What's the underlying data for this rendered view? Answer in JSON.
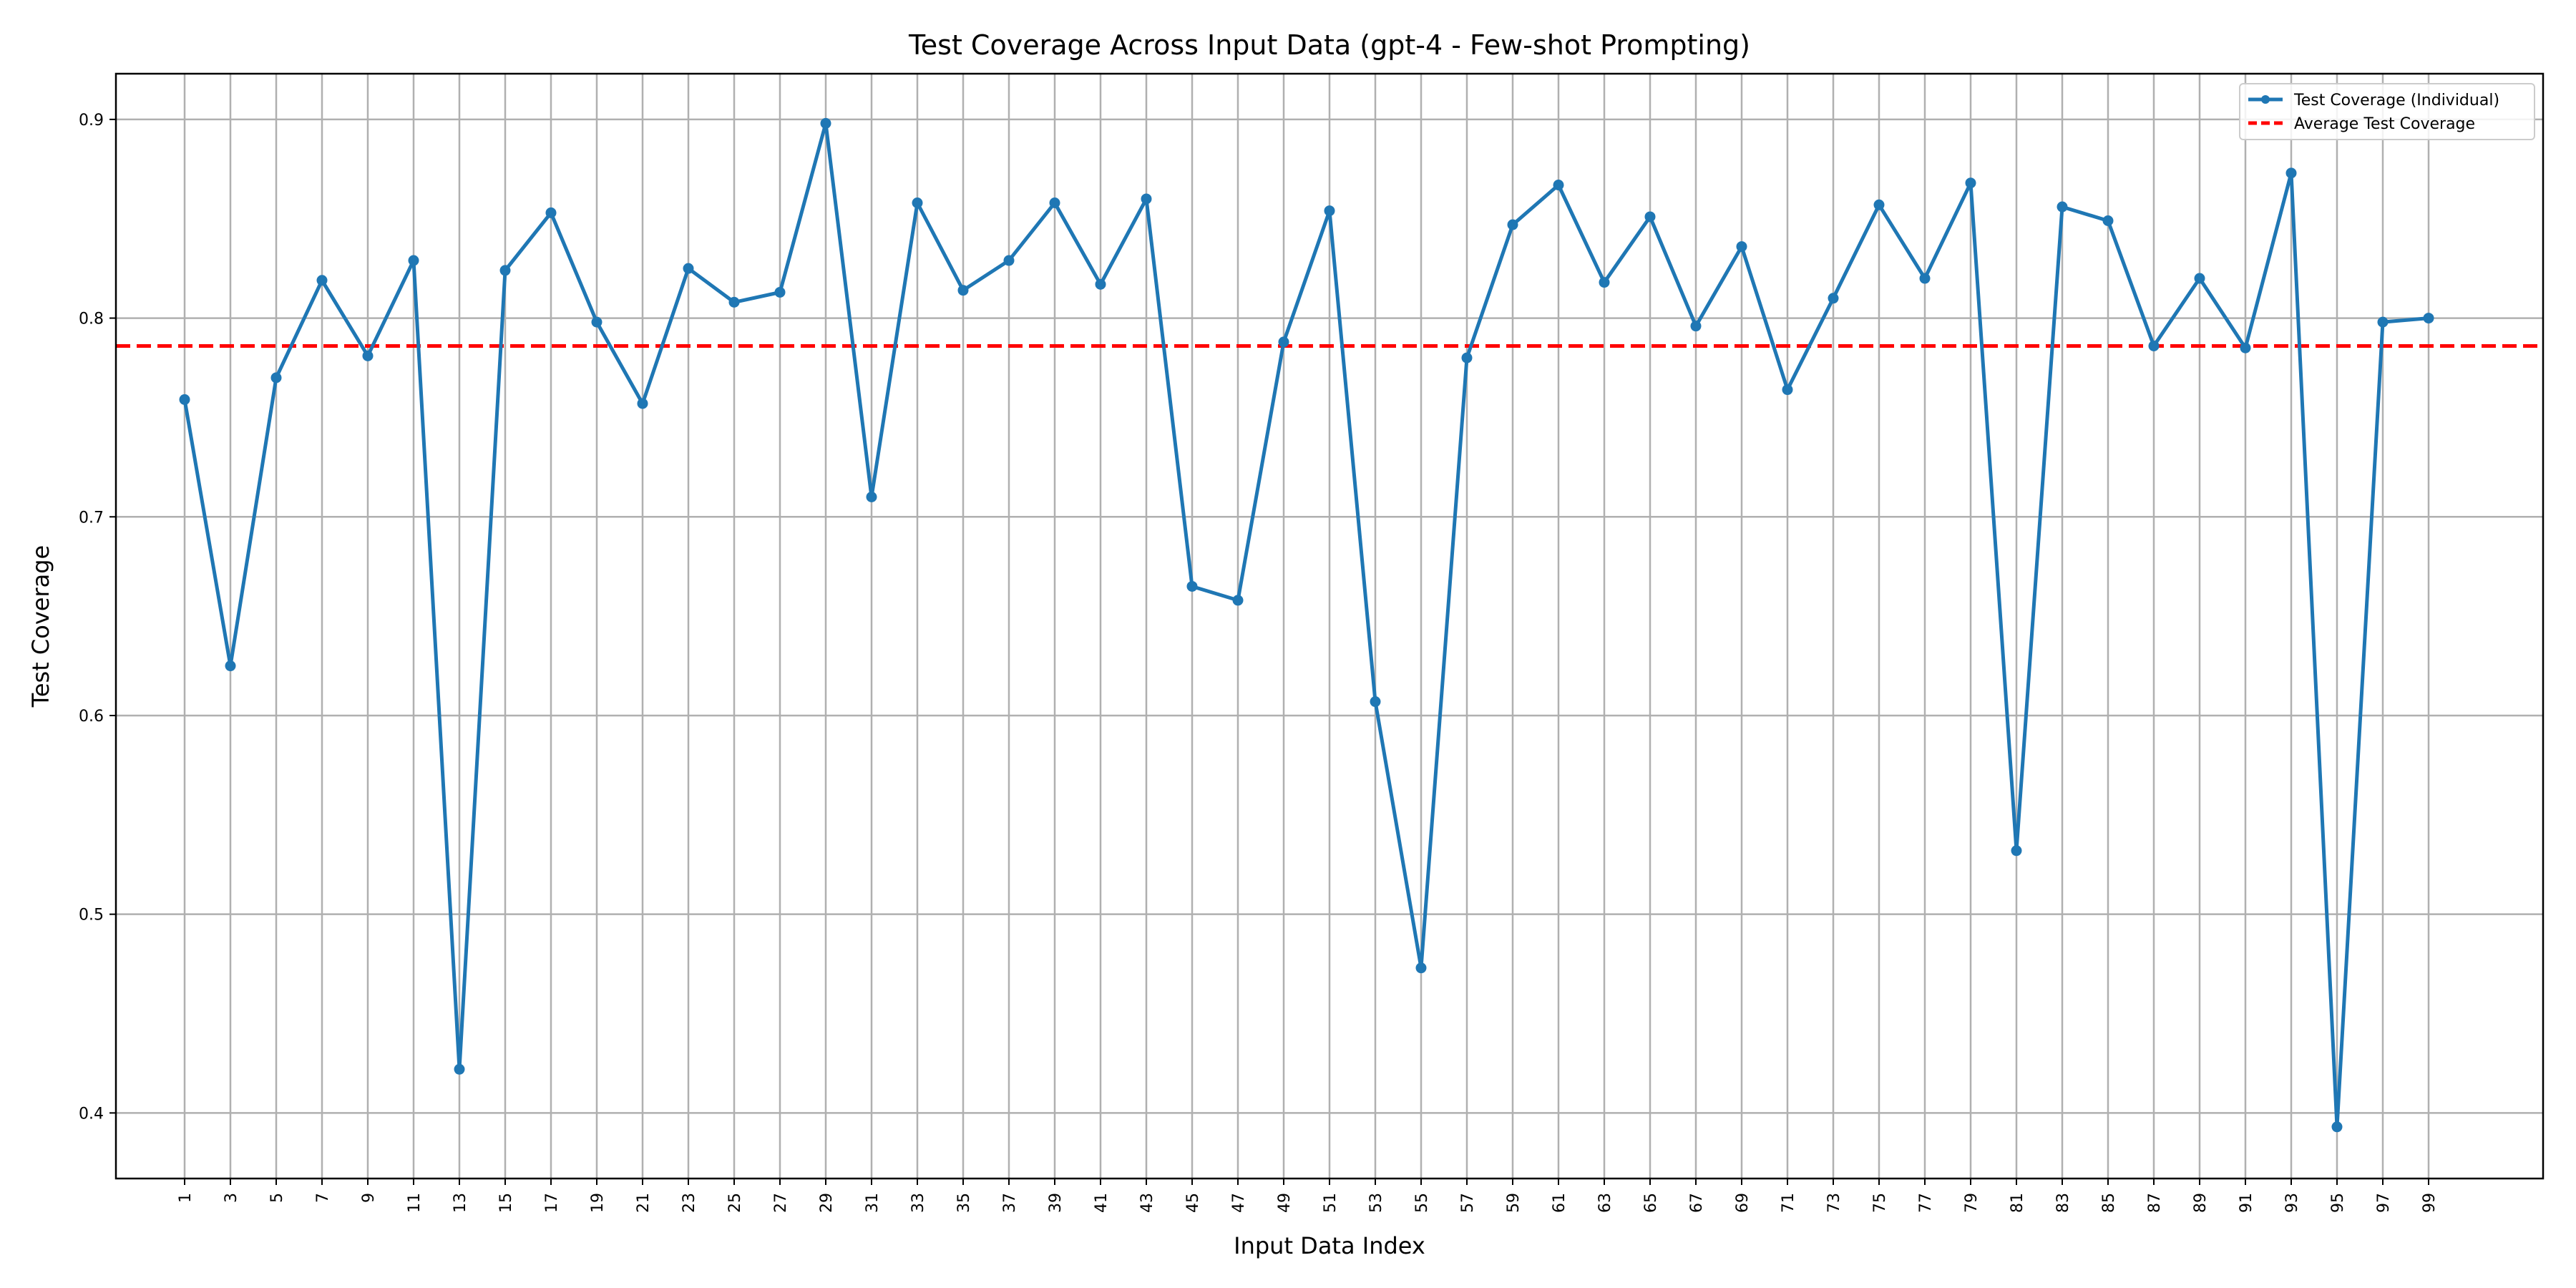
{
  "chart_data": {
    "type": "line",
    "title": "Test Coverage Across Input Data (gpt-4 - Few-shot Prompting)",
    "xlabel": "Input Data Index",
    "ylabel": "Test Coverage",
    "xlim": [
      -2,
      104
    ],
    "ylim": [
      0.367,
      0.923
    ],
    "x": [
      1,
      3,
      5,
      7,
      9,
      11,
      13,
      15,
      17,
      19,
      21,
      23,
      25,
      27,
      29,
      31,
      33,
      35,
      37,
      39,
      41,
      43,
      45,
      47,
      49,
      51,
      53,
      55,
      57,
      59,
      61,
      63,
      65,
      67,
      69,
      71,
      73,
      75,
      77,
      79,
      81,
      83,
      85,
      87,
      89,
      91,
      93,
      95,
      97,
      99
    ],
    "xticks": [
      1,
      3,
      5,
      7,
      9,
      11,
      13,
      15,
      17,
      19,
      21,
      23,
      25,
      27,
      29,
      31,
      33,
      35,
      37,
      39,
      41,
      43,
      45,
      47,
      49,
      51,
      53,
      55,
      57,
      59,
      61,
      63,
      65,
      67,
      69,
      71,
      73,
      75,
      77,
      79,
      81,
      83,
      85,
      87,
      89,
      91,
      93,
      95,
      97,
      99
    ],
    "yticks": [
      0.4,
      0.5,
      0.6,
      0.7,
      0.8,
      0.9
    ],
    "grid": true,
    "legend_position": "top-right",
    "series": [
      {
        "name": "Test Coverage (Individual)",
        "color": "#1f77b4",
        "style": "solid-with-markers",
        "values": [
          0.759,
          0.625,
          0.77,
          0.819,
          0.781,
          0.829,
          0.422,
          0.824,
          0.853,
          0.798,
          0.757,
          0.825,
          0.808,
          0.813,
          0.898,
          0.71,
          0.858,
          0.814,
          0.829,
          0.858,
          0.817,
          0.86,
          0.665,
          0.658,
          0.788,
          0.854,
          0.607,
          0.473,
          0.78,
          0.847,
          0.867,
          0.818,
          0.851,
          0.796,
          0.836,
          0.764,
          0.81,
          0.857,
          0.82,
          0.868,
          0.532,
          0.856,
          0.849,
          0.786,
          0.82,
          0.785,
          0.873,
          0.393,
          0.798,
          0.8
        ]
      },
      {
        "name": "Average Test Coverage",
        "color": "#ff0000",
        "style": "dashed-horizontal",
        "value": 0.786
      }
    ]
  }
}
